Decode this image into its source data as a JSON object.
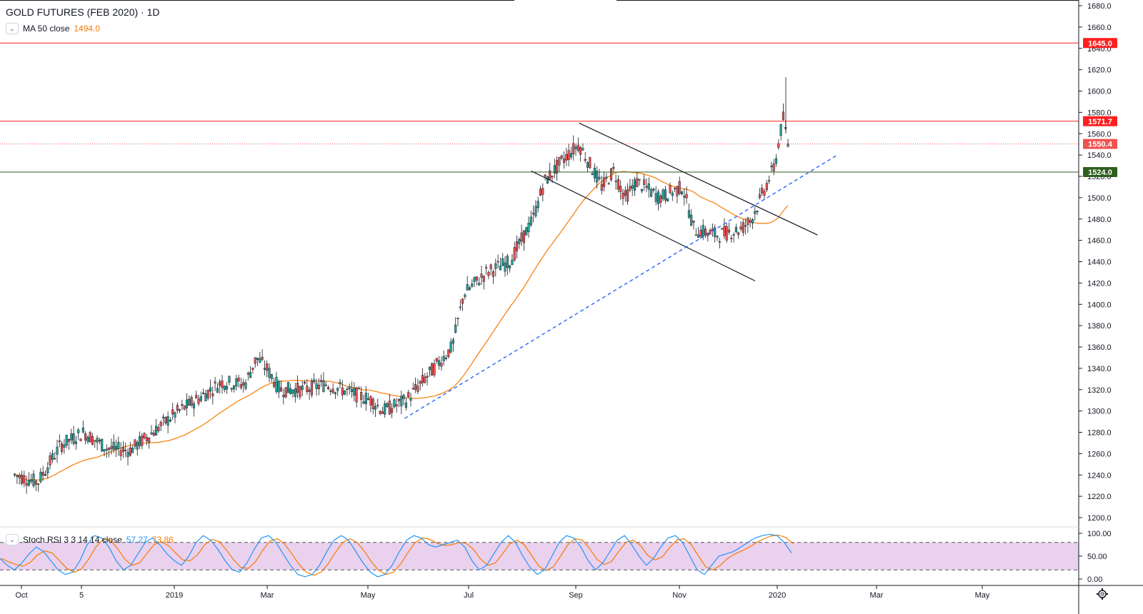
{
  "header": {
    "symbol": "GOLD FUTURES (FEB 2020) · 1D",
    "ma_label": "MA 50 close",
    "ma_value": "1494.0",
    "rsi_label": "Stoch RSI 3 3 14 14 close",
    "rsi_k": "57.27",
    "rsi_d": "73.86"
  },
  "colors": {
    "up": "#26a69a",
    "down": "#ef5350",
    "ma": "#f57c00",
    "resistance": "#ff1f1f",
    "support": "#2e5e1e",
    "trend": "#2962ff",
    "rsi_k": "#2196f3",
    "rsi_d": "#f57c00",
    "rsi_band": "#e1bee7"
  },
  "chart_data": {
    "type": "candlestick",
    "title": "GOLD FUTURES (FEB 2020)",
    "interval": "1D",
    "x_ticks": [
      "Oct",
      "5",
      "2019",
      "Mar",
      "May",
      "Jul",
      "Sep",
      "Nov",
      "2020",
      "Mar",
      "May"
    ],
    "y_ticks": [
      "1200.0",
      "1220.0",
      "1240.0",
      "1260.0",
      "1280.0",
      "1300.0",
      "1320.0",
      "1340.0",
      "1360.0",
      "1380.0",
      "1400.0",
      "1420.0",
      "1440.0",
      "1460.0",
      "1480.0",
      "1500.0",
      "1520.0",
      "1540.0",
      "1560.0",
      "1580.0",
      "1600.0",
      "1620.0",
      "1640.0",
      "1660.0",
      "1680.0"
    ],
    "ylim": [
      1190,
      1690
    ],
    "price_lines": [
      {
        "label": "1645.0",
        "value": 1645.0,
        "style": "solid",
        "color": "#ff1f1f"
      },
      {
        "label": "1571.7",
        "value": 1571.7,
        "style": "solid",
        "color": "#ff1f1f"
      },
      {
        "label": "1550.4",
        "value": 1550.4,
        "style": "dotted",
        "color": "#ef5350"
      },
      {
        "label": "1524.0",
        "value": 1524.0,
        "style": "solid",
        "color": "#2e5e1e"
      }
    ],
    "price_path": [
      [
        "2018-09-26",
        1240
      ],
      [
        "2018-10-10",
        1233
      ],
      [
        "2018-10-24",
        1268
      ],
      [
        "2018-11-07",
        1280
      ],
      [
        "2018-11-21",
        1265
      ],
      [
        "2018-12-05",
        1263
      ],
      [
        "2018-12-19",
        1280
      ],
      [
        "2019-01-02",
        1298
      ],
      [
        "2019-01-16",
        1312
      ],
      [
        "2019-01-30",
        1327
      ],
      [
        "2019-02-13",
        1325
      ],
      [
        "2019-02-20",
        1350
      ],
      [
        "2019-02-27",
        1338
      ],
      [
        "2019-03-06",
        1320
      ],
      [
        "2019-03-20",
        1320
      ],
      [
        "2019-04-03",
        1325
      ],
      [
        "2019-04-17",
        1318
      ],
      [
        "2019-05-01",
        1310
      ],
      [
        "2019-05-08",
        1300
      ],
      [
        "2019-05-22",
        1310
      ],
      [
        "2019-06-05",
        1335
      ],
      [
        "2019-06-19",
        1360
      ],
      [
        "2019-06-26",
        1410
      ],
      [
        "2019-07-10",
        1430
      ],
      [
        "2019-07-24",
        1440
      ],
      [
        "2019-08-07",
        1480
      ],
      [
        "2019-08-14",
        1515
      ],
      [
        "2019-08-28",
        1540
      ],
      [
        "2019-09-04",
        1550
      ],
      [
        "2019-09-18",
        1510
      ],
      [
        "2019-09-25",
        1525
      ],
      [
        "2019-10-02",
        1500
      ],
      [
        "2019-10-09",
        1515
      ],
      [
        "2019-10-23",
        1500
      ],
      [
        "2019-11-06",
        1510
      ],
      [
        "2019-11-13",
        1470
      ],
      [
        "2019-11-27",
        1465
      ],
      [
        "2019-12-11",
        1470
      ],
      [
        "2019-12-18",
        1480
      ],
      [
        "2019-12-25",
        1505
      ],
      [
        "2020-01-01",
        1530
      ],
      [
        "2020-01-06",
        1575
      ],
      [
        "2020-01-09",
        1550
      ]
    ],
    "annotations": [
      {
        "type": "channel_upper",
        "from": [
          "2019-09-04",
          1570
        ],
        "to": [
          "2020-01-27",
          1465
        ]
      },
      {
        "type": "channel_lower",
        "from": [
          "2019-08-06",
          1525
        ],
        "to": [
          "2019-12-20",
          1422
        ]
      },
      {
        "type": "trendline_dashed",
        "from": [
          "2019-05-21",
          1293
        ],
        "to": [
          "2020-02-08",
          1540
        ]
      }
    ],
    "series": [
      {
        "name": "MA 50 close",
        "last": 1494.0
      },
      {
        "name": "Stoch RSI 3 3 14 14 close",
        "last_k": 57.27,
        "last_d": 73.86
      }
    ],
    "rsi": {
      "y_ticks": [
        "100.00",
        "50.00",
        "0.00"
      ],
      "bands": [
        20,
        80
      ],
      "k": [
        45,
        30,
        20,
        35,
        55,
        70,
        60,
        40,
        20,
        10,
        15,
        40,
        75,
        95,
        90,
        70,
        40,
        20,
        30,
        55,
        80,
        90,
        75,
        55,
        40,
        30,
        50,
        80,
        95,
        85,
        65,
        40,
        20,
        15,
        35,
        65,
        90,
        95,
        80,
        55,
        30,
        10,
        5,
        10,
        30,
        60,
        85,
        95,
        85,
        60,
        35,
        15,
        5,
        10,
        30,
        60,
        85,
        95,
        90,
        75,
        70,
        75,
        80,
        85,
        70,
        40,
        20,
        30,
        55,
        80,
        95,
        80,
        50,
        25,
        10,
        20,
        50,
        80,
        95,
        90,
        70,
        40,
        20,
        35,
        60,
        85,
        95,
        75,
        50,
        30,
        45,
        70,
        90,
        95,
        80,
        50,
        20,
        10,
        30,
        50,
        55,
        60,
        70,
        80,
        90,
        95,
        98,
        95,
        80,
        57
      ]
    }
  }
}
